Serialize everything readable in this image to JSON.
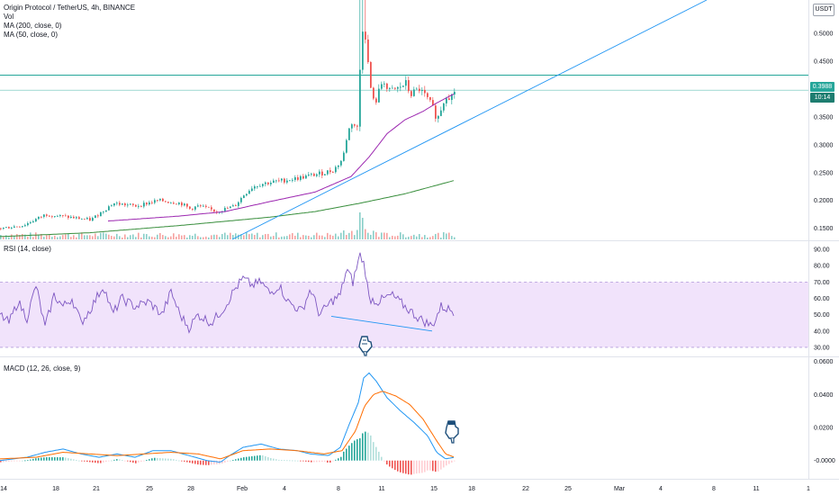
{
  "header": {
    "title": "Origin Protocol / TetherUS, 4h, BINANCE",
    "vol_label": "Vol",
    "ma200_label": "MA (200, close, 0)",
    "ma50_label": "MA (50, close, 0)"
  },
  "rsi_label": "RSI (14, close)",
  "macd_label": "MACD (12, 26, close, 9)",
  "currency": "USDT",
  "last_price": "0.3988",
  "countdown": "10:14",
  "colors": {
    "up": "#26a69a",
    "down": "#ef5350",
    "ma50": "#9c27b0",
    "ma200": "#388e3c",
    "rsi": "#7e57c2",
    "rsi_band": "#f1e3fb",
    "macd": "#2196f3",
    "signal": "#ff6d00",
    "trendline": "#2196f3",
    "hline": "#26a69a",
    "price_tag": "#26a69a",
    "countdown_tag": "#1e7d70"
  },
  "chart_data": [
    {
      "type": "candlestick",
      "title": "Origin Protocol / TetherUS, 4h, BINANCE",
      "ylim": [
        0.13,
        0.56
      ],
      "yticks": [
        "0.5000",
        "0.4500",
        "0.4000",
        "0.3500",
        "0.3000",
        "0.2500",
        "0.2000",
        "0.1500"
      ],
      "yticks_values": [
        0.5,
        0.45,
        0.4,
        0.35,
        0.3,
        0.25,
        0.2,
        0.15
      ],
      "last_price": 0.3988,
      "horizontal_lines": [
        0.425,
        0.398
      ],
      "price_keypoints": [
        [
          0,
          0.15
        ],
        [
          25,
          0.155
        ],
        [
          50,
          0.175
        ],
        [
          75,
          0.17
        ],
        [
          100,
          0.165
        ],
        [
          125,
          0.195
        ],
        [
          150,
          0.19
        ],
        [
          175,
          0.2
        ],
        [
          200,
          0.195
        ],
        [
          210,
          0.185
        ],
        [
          220,
          0.19
        ],
        [
          240,
          0.18
        ],
        [
          260,
          0.19
        ],
        [
          270,
          0.21
        ],
        [
          280,
          0.225
        ],
        [
          290,
          0.23
        ],
        [
          310,
          0.235
        ],
        [
          330,
          0.24
        ],
        [
          345,
          0.245
        ],
        [
          360,
          0.25
        ],
        [
          370,
          0.255
        ],
        [
          380,
          0.275
        ],
        [
          385,
          0.32
        ],
        [
          390,
          0.34
        ],
        [
          396,
          0.33
        ],
        [
          400,
          0.47
        ],
        [
          403,
          0.53
        ],
        [
          406,
          0.48
        ],
        [
          410,
          0.41
        ],
        [
          415,
          0.37
        ],
        [
          420,
          0.395
        ],
        [
          425,
          0.42
        ],
        [
          430,
          0.395
        ],
        [
          440,
          0.4
        ],
        [
          450,
          0.41
        ],
        [
          455,
          0.39
        ],
        [
          465,
          0.4
        ],
        [
          475,
          0.38
        ],
        [
          480,
          0.365
        ],
        [
          485,
          0.345
        ],
        [
          490,
          0.37
        ],
        [
          495,
          0.39
        ],
        [
          500,
          0.385
        ],
        [
          505,
          0.4
        ]
      ],
      "ma50_keypoints": [
        [
          120,
          0.163
        ],
        [
          200,
          0.172
        ],
        [
          250,
          0.18
        ],
        [
          300,
          0.198
        ],
        [
          350,
          0.215
        ],
        [
          390,
          0.243
        ],
        [
          410,
          0.278
        ],
        [
          430,
          0.32
        ],
        [
          450,
          0.345
        ],
        [
          470,
          0.36
        ],
        [
          485,
          0.375
        ],
        [
          505,
          0.392
        ]
      ],
      "ma200_keypoints": [
        [
          0,
          0.135
        ],
        [
          100,
          0.142
        ],
        [
          200,
          0.155
        ],
        [
          300,
          0.17
        ],
        [
          350,
          0.18
        ],
        [
          400,
          0.195
        ],
        [
          450,
          0.212
        ],
        [
          505,
          0.236
        ]
      ],
      "trendline": {
        "from": [
          258,
          0.13
        ],
        "to": [
          785,
          0.56
        ]
      },
      "volume_spikes": [
        [
          398,
          30
        ],
        [
          402,
          24
        ]
      ]
    },
    {
      "type": "line",
      "title": "RSI (14, close)",
      "ylim": [
        25,
        95
      ],
      "yticks": [
        "90.00",
        "80.00",
        "70.00",
        "60.00",
        "50.00",
        "40.00",
        "30.00"
      ],
      "yticks_values": [
        90,
        80,
        70,
        60,
        50,
        40,
        30
      ],
      "band": [
        30,
        70
      ],
      "rsi_keypoints": [
        [
          0,
          50
        ],
        [
          10,
          45
        ],
        [
          20,
          58
        ],
        [
          30,
          48
        ],
        [
          40,
          68
        ],
        [
          50,
          42
        ],
        [
          60,
          62
        ],
        [
          70,
          55
        ],
        [
          80,
          60
        ],
        [
          90,
          45
        ],
        [
          100,
          53
        ],
        [
          115,
          68
        ],
        [
          125,
          50
        ],
        [
          135,
          60
        ],
        [
          150,
          55
        ],
        [
          165,
          58
        ],
        [
          180,
          50
        ],
        [
          190,
          64
        ],
        [
          200,
          50
        ],
        [
          210,
          42
        ],
        [
          220,
          50
        ],
        [
          235,
          45
        ],
        [
          250,
          55
        ],
        [
          260,
          65
        ],
        [
          270,
          72
        ],
        [
          280,
          68
        ],
        [
          290,
          70
        ],
        [
          300,
          63
        ],
        [
          310,
          68
        ],
        [
          320,
          58
        ],
        [
          335,
          52
        ],
        [
          345,
          66
        ],
        [
          355,
          50
        ],
        [
          368,
          58
        ],
        [
          378,
          62
        ],
        [
          385,
          78
        ],
        [
          392,
          70
        ],
        [
          400,
          87
        ],
        [
          405,
          80
        ],
        [
          410,
          60
        ],
        [
          420,
          58
        ],
        [
          435,
          62
        ],
        [
          450,
          55
        ],
        [
          465,
          48
        ],
        [
          480,
          43
        ],
        [
          490,
          55
        ],
        [
          505,
          52
        ]
      ],
      "divergence_line": {
        "from": [
          368,
          49
        ],
        "to": [
          480,
          40
        ]
      }
    },
    {
      "type": "line",
      "title": "MACD (12, 26, close, 9)",
      "ylim": [
        -0.0105,
        0.0625
      ],
      "yticks": [
        "0.0600",
        "0.0400",
        "0.0200",
        "-0.0000"
      ],
      "yticks_values": [
        0.06,
        0.04,
        0.02,
        0.0
      ],
      "macd_keypoints": [
        [
          0,
          0.0
        ],
        [
          30,
          0.002
        ],
        [
          50,
          0.005
        ],
        [
          70,
          0.007
        ],
        [
          90,
          0.004
        ],
        [
          110,
          0.002
        ],
        [
          130,
          0.004
        ],
        [
          150,
          0.002
        ],
        [
          170,
          0.006
        ],
        [
          190,
          0.006
        ],
        [
          210,
          0.003
        ],
        [
          230,
          0.0
        ],
        [
          245,
          -0.001
        ],
        [
          255,
          0.003
        ],
        [
          270,
          0.008
        ],
        [
          290,
          0.01
        ],
        [
          310,
          0.007
        ],
        [
          330,
          0.006
        ],
        [
          345,
          0.004
        ],
        [
          365,
          0.003
        ],
        [
          378,
          0.008
        ],
        [
          388,
          0.022
        ],
        [
          398,
          0.035
        ],
        [
          404,
          0.05
        ],
        [
          410,
          0.053
        ],
        [
          418,
          0.048
        ],
        [
          430,
          0.038
        ],
        [
          445,
          0.03
        ],
        [
          460,
          0.023
        ],
        [
          475,
          0.015
        ],
        [
          485,
          0.005
        ],
        [
          495,
          0.001
        ],
        [
          505,
          0.002
        ]
      ],
      "signal_keypoints": [
        [
          0,
          0.001
        ],
        [
          40,
          0.002
        ],
        [
          70,
          0.005
        ],
        [
          100,
          0.004
        ],
        [
          130,
          0.003
        ],
        [
          160,
          0.004
        ],
        [
          190,
          0.005
        ],
        [
          220,
          0.004
        ],
        [
          245,
          0.001
        ],
        [
          270,
          0.006
        ],
        [
          300,
          0.007
        ],
        [
          330,
          0.006
        ],
        [
          360,
          0.004
        ],
        [
          380,
          0.006
        ],
        [
          395,
          0.018
        ],
        [
          405,
          0.033
        ],
        [
          415,
          0.04
        ],
        [
          425,
          0.042
        ],
        [
          440,
          0.039
        ],
        [
          455,
          0.034
        ],
        [
          470,
          0.025
        ],
        [
          485,
          0.012
        ],
        [
          495,
          0.004
        ],
        [
          505,
          0.002
        ]
      ]
    }
  ],
  "xaxis": {
    "labels": [
      "14",
      "18",
      "21",
      "25",
      "28",
      "Feb",
      "4",
      "8",
      "11",
      "15",
      "18",
      "22",
      "25",
      "Mar",
      "4",
      "8",
      "11",
      "1"
    ]
  }
}
